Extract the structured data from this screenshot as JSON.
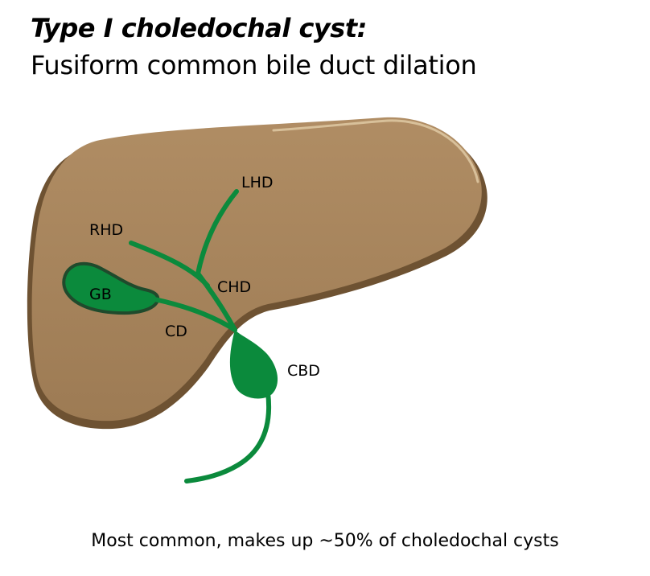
{
  "title": {
    "line1": "Type I choledochal cyst:",
    "line2": "Fusiform common bile duct dilation"
  },
  "labels": {
    "lhd": "LHD",
    "rhd": "RHD",
    "chd": "CHD",
    "gb": "GB",
    "cd": "CD",
    "cbd": "CBD"
  },
  "caption": "Most common, makes up ~50% of choledochal cysts",
  "colors": {
    "liver_fill": "#a6845d",
    "liver_edge": "#6e5232",
    "liver_highlight": "#d8c09a",
    "duct": "#0b8a3c",
    "gallbladder_outline": "#1f4a2c"
  }
}
